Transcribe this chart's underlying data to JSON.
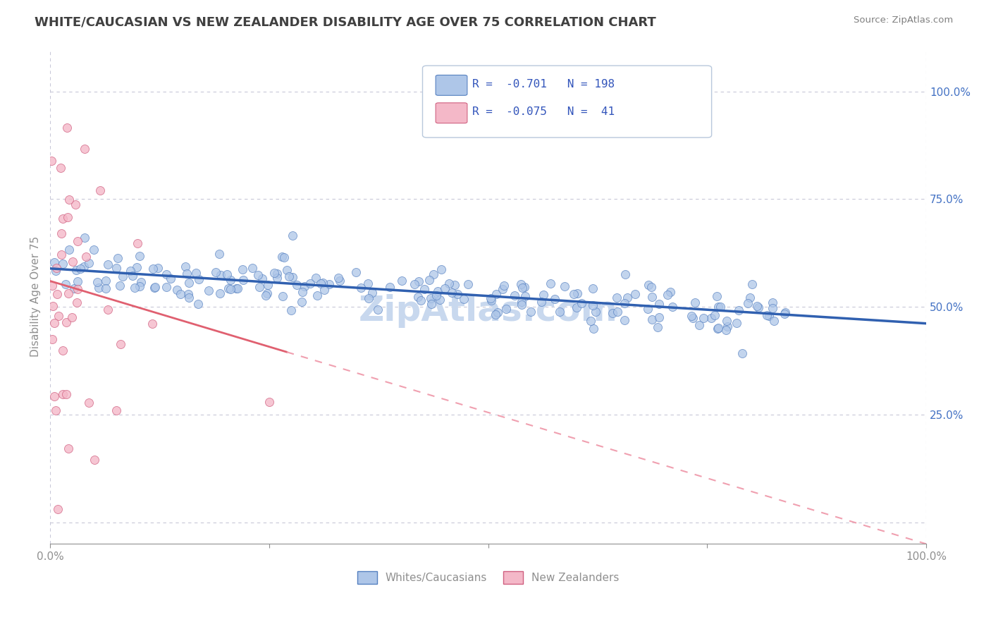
{
  "title": "WHITE/CAUCASIAN VS NEW ZEALANDER DISABILITY AGE OVER 75 CORRELATION CHART",
  "source": "Source: ZipAtlas.com",
  "ylabel": "Disability Age Over 75",
  "xlim": [
    0,
    1
  ],
  "ylim": [
    -0.05,
    1.1
  ],
  "yticks": [
    0.0,
    0.25,
    0.5,
    0.75,
    1.0
  ],
  "blue_R": -0.701,
  "blue_N": 198,
  "pink_R": -0.075,
  "pink_N": 41,
  "blue_fill_color": "#aec6e8",
  "pink_fill_color": "#f4b8c8",
  "blue_edge_color": "#5580c0",
  "pink_edge_color": "#d06080",
  "blue_line_color": "#3060b0",
  "pink_line_color": "#e06070",
  "pink_dash_color": "#f0a0b0",
  "title_color": "#404040",
  "source_color": "#808080",
  "legend_text_color": "#3355bb",
  "axis_color": "#909090",
  "grid_color": "#c8c8d8",
  "right_tick_color": "#4472c4",
  "watermark_color": "#c8d8ee",
  "background_color": "#ffffff",
  "legend_label_blue": "Whites/Caucasians",
  "legend_label_pink": "New Zealanders"
}
